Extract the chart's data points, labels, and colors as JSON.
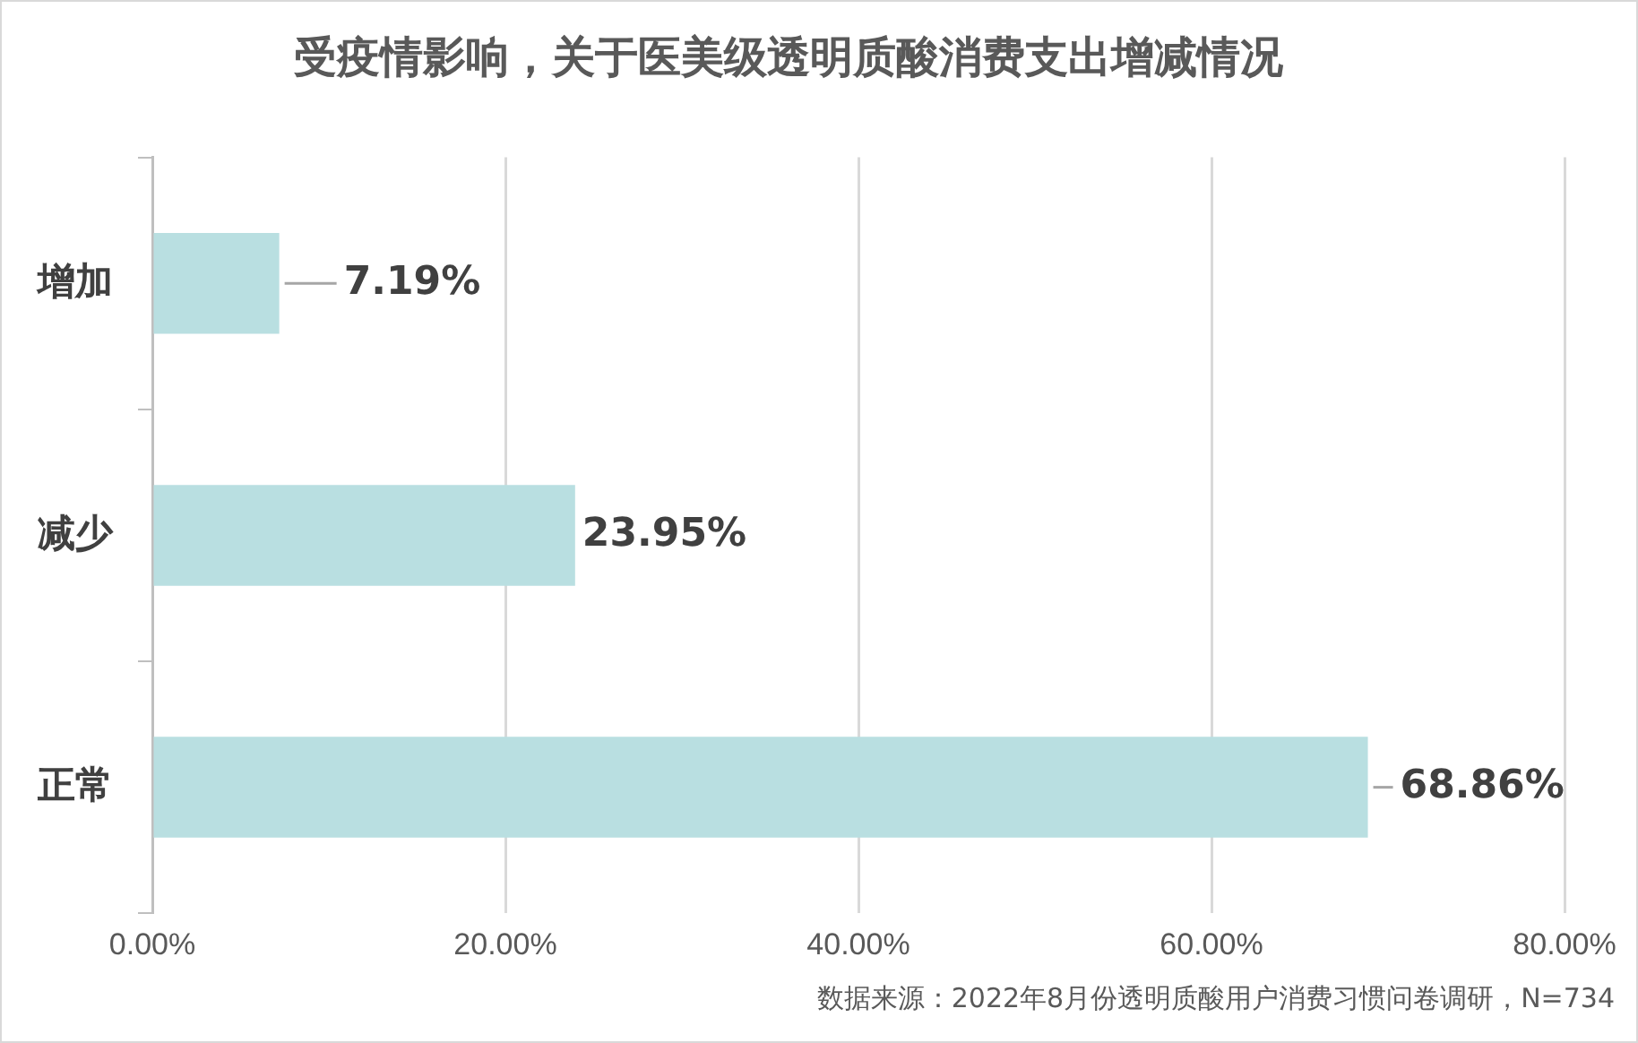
{
  "chart_data": {
    "type": "bar",
    "orientation": "horizontal",
    "title": "受疫情影响，关于医美级透明质酸消费支出增减情况",
    "categories": [
      "增加",
      "减少",
      "正常"
    ],
    "values": [
      7.19,
      23.95,
      68.86
    ],
    "value_labels": [
      "7.19%",
      "23.95%",
      "68.86%"
    ],
    "color": "#b9dfe1",
    "xlim": [
      0,
      80
    ],
    "xticks": [
      {
        "value": 0,
        "label": "0.00%"
      },
      {
        "value": 20,
        "label": "20.00%"
      },
      {
        "value": 40,
        "label": "40.00%"
      },
      {
        "value": 60,
        "label": "60.00%"
      },
      {
        "value": 80,
        "label": "80.00%"
      }
    ],
    "grid": "x",
    "annotations": [
      "数据来源：2022年8月份透明质酸用户消费习惯问卷调研，N=734"
    ]
  }
}
